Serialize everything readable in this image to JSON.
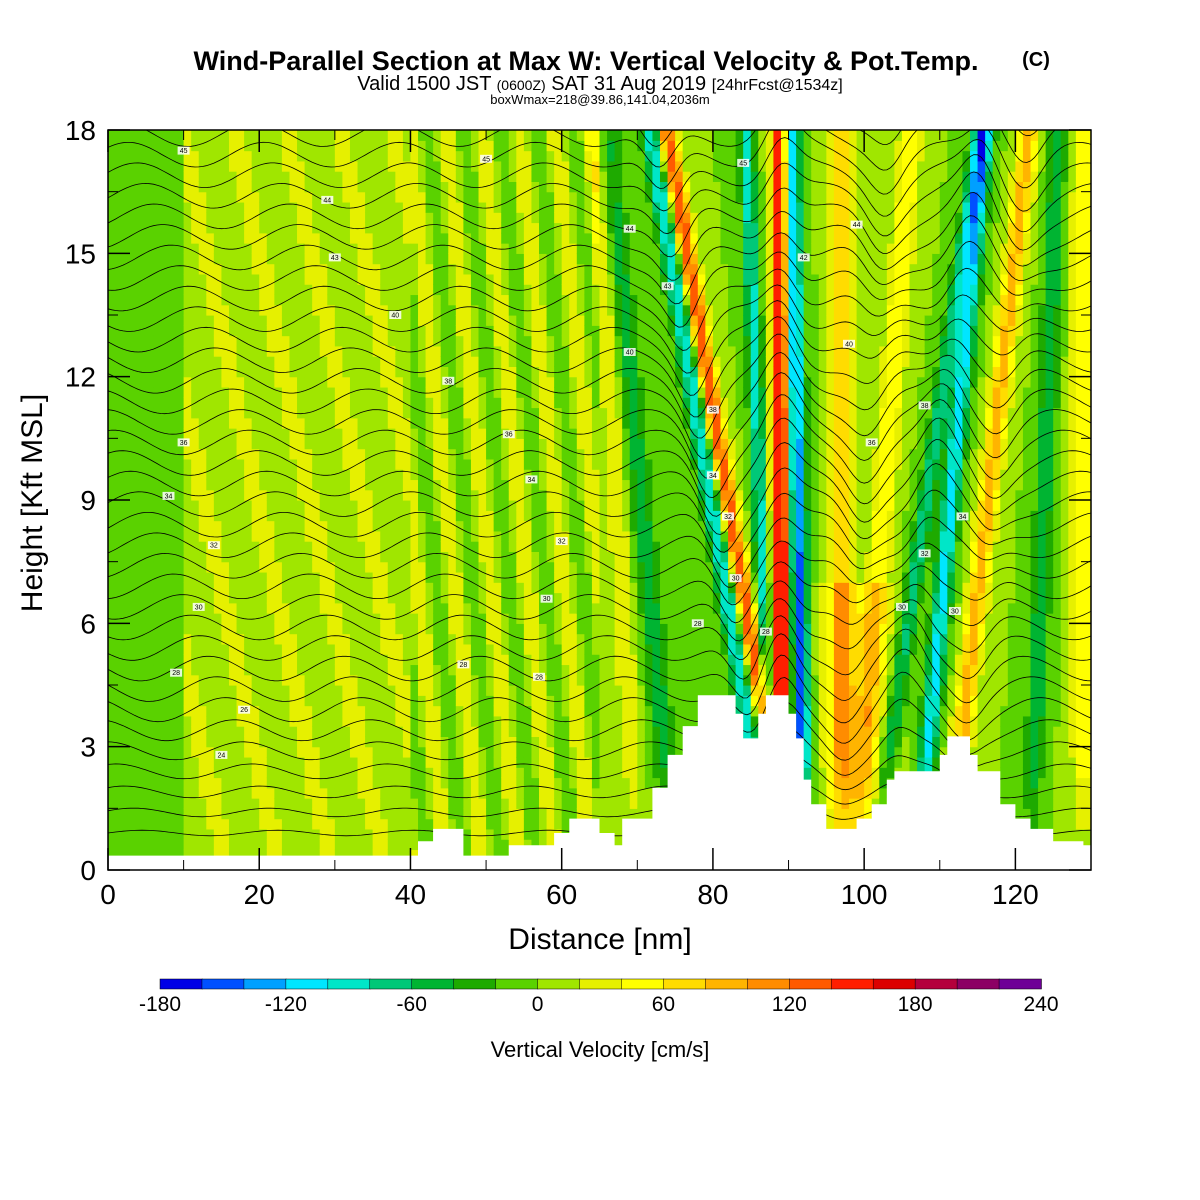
{
  "title": {
    "main": "Wind-Parallel Section at Max W: Vertical Velocity & Pot.Temp.",
    "main_suffix": "(C)",
    "sub_a": "Valid 1500 JST",
    "sub_b": "(0600Z)",
    "sub_c": "SAT 31 Aug 2019",
    "sub_d": "[24hrFcst@1534z]",
    "small": "boxWmax=218@39.86,141.04,2036m"
  },
  "chart_data": {
    "type": "heatmap",
    "xlabel": "Distance [nm]",
    "ylabel": "Height [Kft MSL]",
    "xlim": [
      0,
      130
    ],
    "ylim": [
      0,
      18
    ],
    "x_ticks": [
      "0",
      "20",
      "40",
      "60",
      "80",
      "100",
      "120"
    ],
    "y_ticks": [
      "0",
      "3",
      "6",
      "9",
      "12",
      "15",
      "18"
    ],
    "colorbar": {
      "title": "Vertical Velocity [cm/s]",
      "min": -180,
      "max": 240,
      "step": 20,
      "labels": [
        "-180",
        "-120",
        "-60",
        "0",
        "60",
        "120",
        "180",
        "240"
      ],
      "colors": [
        "#0000e6",
        "#0050ff",
        "#00a0ff",
        "#00e6ff",
        "#00e6c8",
        "#00c878",
        "#00b432",
        "#1eaa00",
        "#5ad200",
        "#a0e600",
        "#e6f000",
        "#ffff00",
        "#ffdc00",
        "#ffb400",
        "#ff8c00",
        "#ff5a00",
        "#ff1e00",
        "#dc0000",
        "#b4003c",
        "#8c0064",
        "#6e0096"
      ]
    },
    "terrain_kft": [
      [
        0,
        0.35
      ],
      [
        40,
        0.35
      ],
      [
        41,
        0.7
      ],
      [
        43,
        1.0
      ],
      [
        46,
        1.0
      ],
      [
        47,
        0.35
      ],
      [
        52,
        0.35
      ],
      [
        53,
        0.6
      ],
      [
        58,
        0.6
      ],
      [
        59,
        0.9
      ],
      [
        61,
        1.25
      ],
      [
        64,
        1.25
      ],
      [
        65,
        0.9
      ],
      [
        67,
        0.6
      ],
      [
        68,
        1.25
      ],
      [
        71,
        1.25
      ],
      [
        72,
        2.0
      ],
      [
        74,
        2.8
      ],
      [
        76,
        3.5
      ],
      [
        78,
        4.25
      ],
      [
        82,
        4.25
      ],
      [
        83,
        3.8
      ],
      [
        84,
        3.2
      ],
      [
        86,
        3.8
      ],
      [
        87,
        4.25
      ],
      [
        89,
        4.25
      ],
      [
        90,
        3.8
      ],
      [
        91,
        3.2
      ],
      [
        92,
        2.2
      ],
      [
        93,
        1.6
      ],
      [
        95,
        1.0
      ],
      [
        98,
        1.0
      ],
      [
        99,
        1.25
      ],
      [
        101,
        1.6
      ],
      [
        103,
        2.2
      ],
      [
        104,
        2.4
      ],
      [
        108,
        2.4
      ],
      [
        110,
        2.8
      ],
      [
        111,
        3.25
      ],
      [
        113,
        3.25
      ],
      [
        114,
        2.8
      ],
      [
        115,
        2.4
      ],
      [
        118,
        1.6
      ],
      [
        120,
        1.25
      ],
      [
        122,
        1.0
      ],
      [
        125,
        0.7
      ],
      [
        128,
        0.7
      ],
      [
        129,
        0.6
      ],
      [
        130,
        0.6
      ]
    ],
    "contour_labels": [
      {
        "x": 10,
        "y": 17.5,
        "text": "45"
      },
      {
        "x": 50,
        "y": 17.3,
        "text": "45"
      },
      {
        "x": 84,
        "y": 17.2,
        "text": "45"
      },
      {
        "x": 29,
        "y": 16.3,
        "text": "44"
      },
      {
        "x": 69,
        "y": 15.6,
        "text": "44"
      },
      {
        "x": 99,
        "y": 15.7,
        "text": "44"
      },
      {
        "x": 30,
        "y": 14.9,
        "text": "43"
      },
      {
        "x": 74,
        "y": 14.2,
        "text": "43"
      },
      {
        "x": 92,
        "y": 14.9,
        "text": "42"
      },
      {
        "x": 38,
        "y": 13.5,
        "text": "40"
      },
      {
        "x": 69,
        "y": 12.6,
        "text": "40"
      },
      {
        "x": 98,
        "y": 12.8,
        "text": "40"
      },
      {
        "x": 45,
        "y": 11.9,
        "text": "38"
      },
      {
        "x": 80,
        "y": 11.2,
        "text": "38"
      },
      {
        "x": 108,
        "y": 11.3,
        "text": "38"
      },
      {
        "x": 10,
        "y": 10.4,
        "text": "36"
      },
      {
        "x": 53,
        "y": 10.6,
        "text": "36"
      },
      {
        "x": 101,
        "y": 10.4,
        "text": "36"
      },
      {
        "x": 8,
        "y": 9.1,
        "text": "34"
      },
      {
        "x": 56,
        "y": 9.5,
        "text": "34"
      },
      {
        "x": 80,
        "y": 9.6,
        "text": "34"
      },
      {
        "x": 113,
        "y": 8.6,
        "text": "34"
      },
      {
        "x": 14,
        "y": 7.9,
        "text": "32"
      },
      {
        "x": 60,
        "y": 8.0,
        "text": "32"
      },
      {
        "x": 82,
        "y": 8.6,
        "text": "32"
      },
      {
        "x": 108,
        "y": 7.7,
        "text": "32"
      },
      {
        "x": 12,
        "y": 6.4,
        "text": "30"
      },
      {
        "x": 58,
        "y": 6.6,
        "text": "30"
      },
      {
        "x": 83,
        "y": 7.1,
        "text": "30"
      },
      {
        "x": 105,
        "y": 6.4,
        "text": "30"
      },
      {
        "x": 112,
        "y": 6.3,
        "text": "30"
      },
      {
        "x": 78,
        "y": 6.0,
        "text": "28"
      },
      {
        "x": 87,
        "y": 5.8,
        "text": "28"
      },
      {
        "x": 9,
        "y": 4.8,
        "text": "28"
      },
      {
        "x": 47,
        "y": 5.0,
        "text": "28"
      },
      {
        "x": 57,
        "y": 4.7,
        "text": "28"
      },
      {
        "x": 18,
        "y": 3.9,
        "text": "26"
      },
      {
        "x": 15,
        "y": 2.8,
        "text": "24"
      }
    ]
  }
}
